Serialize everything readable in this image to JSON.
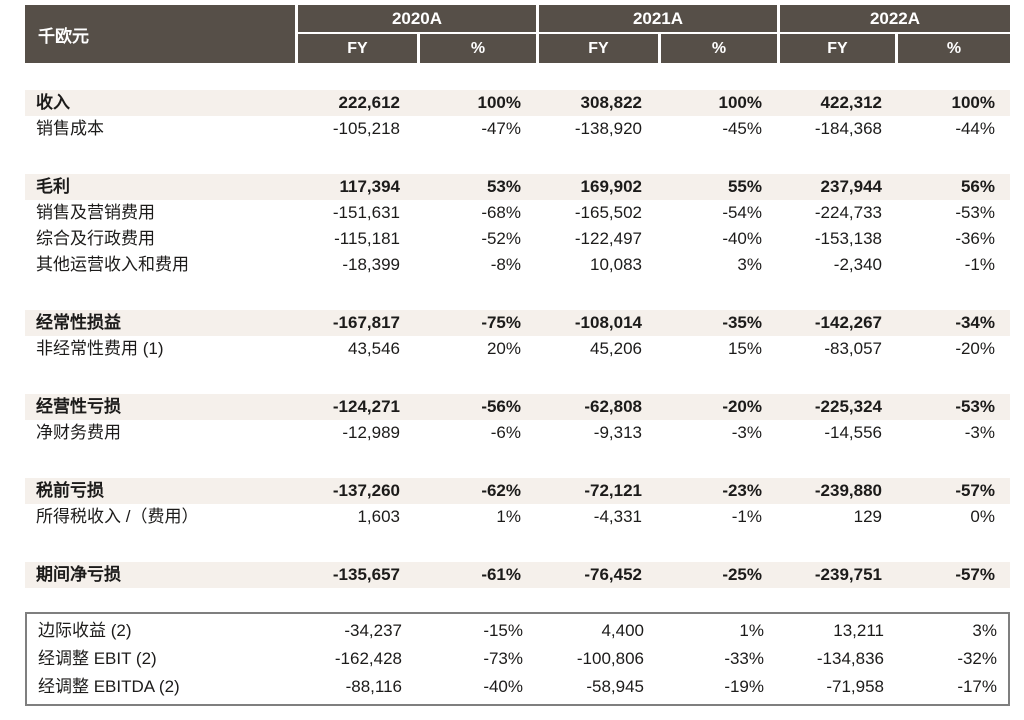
{
  "colors": {
    "header_bg": "#564F48",
    "highlight_bg": "#F5F0EB",
    "box_border": "#7F7F7F",
    "text": "#1C1B1A"
  },
  "table": {
    "unit_label": "千欧元",
    "col_groups": [
      {
        "year": "2020A",
        "fy": "FY",
        "pct": "%"
      },
      {
        "year": "2021A",
        "fy": "FY",
        "pct": "%"
      },
      {
        "year": "2022A",
        "fy": "FY",
        "pct": "%"
      }
    ],
    "rows": [
      {
        "label": "收入",
        "highlight": true,
        "gap_before": false,
        "boxed": false,
        "values": [
          "222,612",
          "100%",
          "308,822",
          "100%",
          "422,312",
          "100%"
        ]
      },
      {
        "label": "销售成本",
        "highlight": false,
        "gap_before": false,
        "boxed": false,
        "values": [
          "-105,218",
          "-47%",
          "-138,920",
          "-45%",
          "-184,368",
          "-44%"
        ]
      },
      {
        "label": "毛利",
        "highlight": true,
        "gap_before": true,
        "boxed": false,
        "values": [
          "117,394",
          "53%",
          "169,902",
          "55%",
          "237,944",
          "56%"
        ]
      },
      {
        "label": "销售及营销费用",
        "highlight": false,
        "gap_before": false,
        "boxed": false,
        "values": [
          "-151,631",
          "-68%",
          "-165,502",
          "-54%",
          "-224,733",
          "-53%"
        ]
      },
      {
        "label": "综合及行政费用",
        "highlight": false,
        "gap_before": false,
        "boxed": false,
        "values": [
          "-115,181",
          "-52%",
          "-122,497",
          "-40%",
          "-153,138",
          "-36%"
        ]
      },
      {
        "label": "其他运营收入和费用",
        "highlight": false,
        "gap_before": false,
        "boxed": false,
        "values": [
          "-18,399",
          "-8%",
          "10,083",
          "3%",
          "-2,340",
          "-1%"
        ]
      },
      {
        "label": "经常性损益",
        "highlight": true,
        "gap_before": true,
        "boxed": false,
        "values": [
          "-167,817",
          "-75%",
          "-108,014",
          "-35%",
          "-142,267",
          "-34%"
        ]
      },
      {
        "label": "非经常性费用 (1)",
        "highlight": false,
        "gap_before": false,
        "boxed": false,
        "values": [
          "43,546",
          "20%",
          "45,206",
          "15%",
          "-83,057",
          "-20%"
        ]
      },
      {
        "label": "经营性亏损",
        "highlight": true,
        "gap_before": true,
        "boxed": false,
        "values": [
          "-124,271",
          "-56%",
          "-62,808",
          "-20%",
          "-225,324",
          "-53%"
        ]
      },
      {
        "label": "净财务费用",
        "highlight": false,
        "gap_before": false,
        "boxed": false,
        "values": [
          "-12,989",
          "-6%",
          "-9,313",
          "-3%",
          "-14,556",
          "-3%"
        ]
      },
      {
        "label": "税前亏损",
        "highlight": true,
        "gap_before": true,
        "boxed": false,
        "values": [
          "-137,260",
          "-62%",
          "-72,121",
          "-23%",
          "-239,880",
          "-57%"
        ]
      },
      {
        "label": "所得税收入 /（费用）",
        "highlight": false,
        "gap_before": false,
        "boxed": false,
        "values": [
          "1,603",
          "1%",
          "-4,331",
          "-1%",
          "129",
          "0%"
        ]
      },
      {
        "label": "期间净亏损",
        "highlight": true,
        "gap_before": true,
        "boxed": false,
        "values": [
          "-135,657",
          "-61%",
          "-76,452",
          "-25%",
          "-239,751",
          "-57%"
        ]
      },
      {
        "label": "边际收益 (2)",
        "highlight": false,
        "gap_before": false,
        "boxed": true,
        "values": [
          "-34,237",
          "-15%",
          "4,400",
          "1%",
          "13,211",
          "3%"
        ]
      },
      {
        "label": "经调整 EBIT (2)",
        "highlight": false,
        "gap_before": false,
        "boxed": true,
        "values": [
          "-162,428",
          "-73%",
          "-100,806",
          "-33%",
          "-134,836",
          "-32%"
        ]
      },
      {
        "label": "经调整 EBITDA (2)",
        "highlight": false,
        "gap_before": false,
        "boxed": true,
        "values": [
          "-88,116",
          "-40%",
          "-58,945",
          "-19%",
          "-71,958",
          "-17%"
        ]
      }
    ]
  }
}
